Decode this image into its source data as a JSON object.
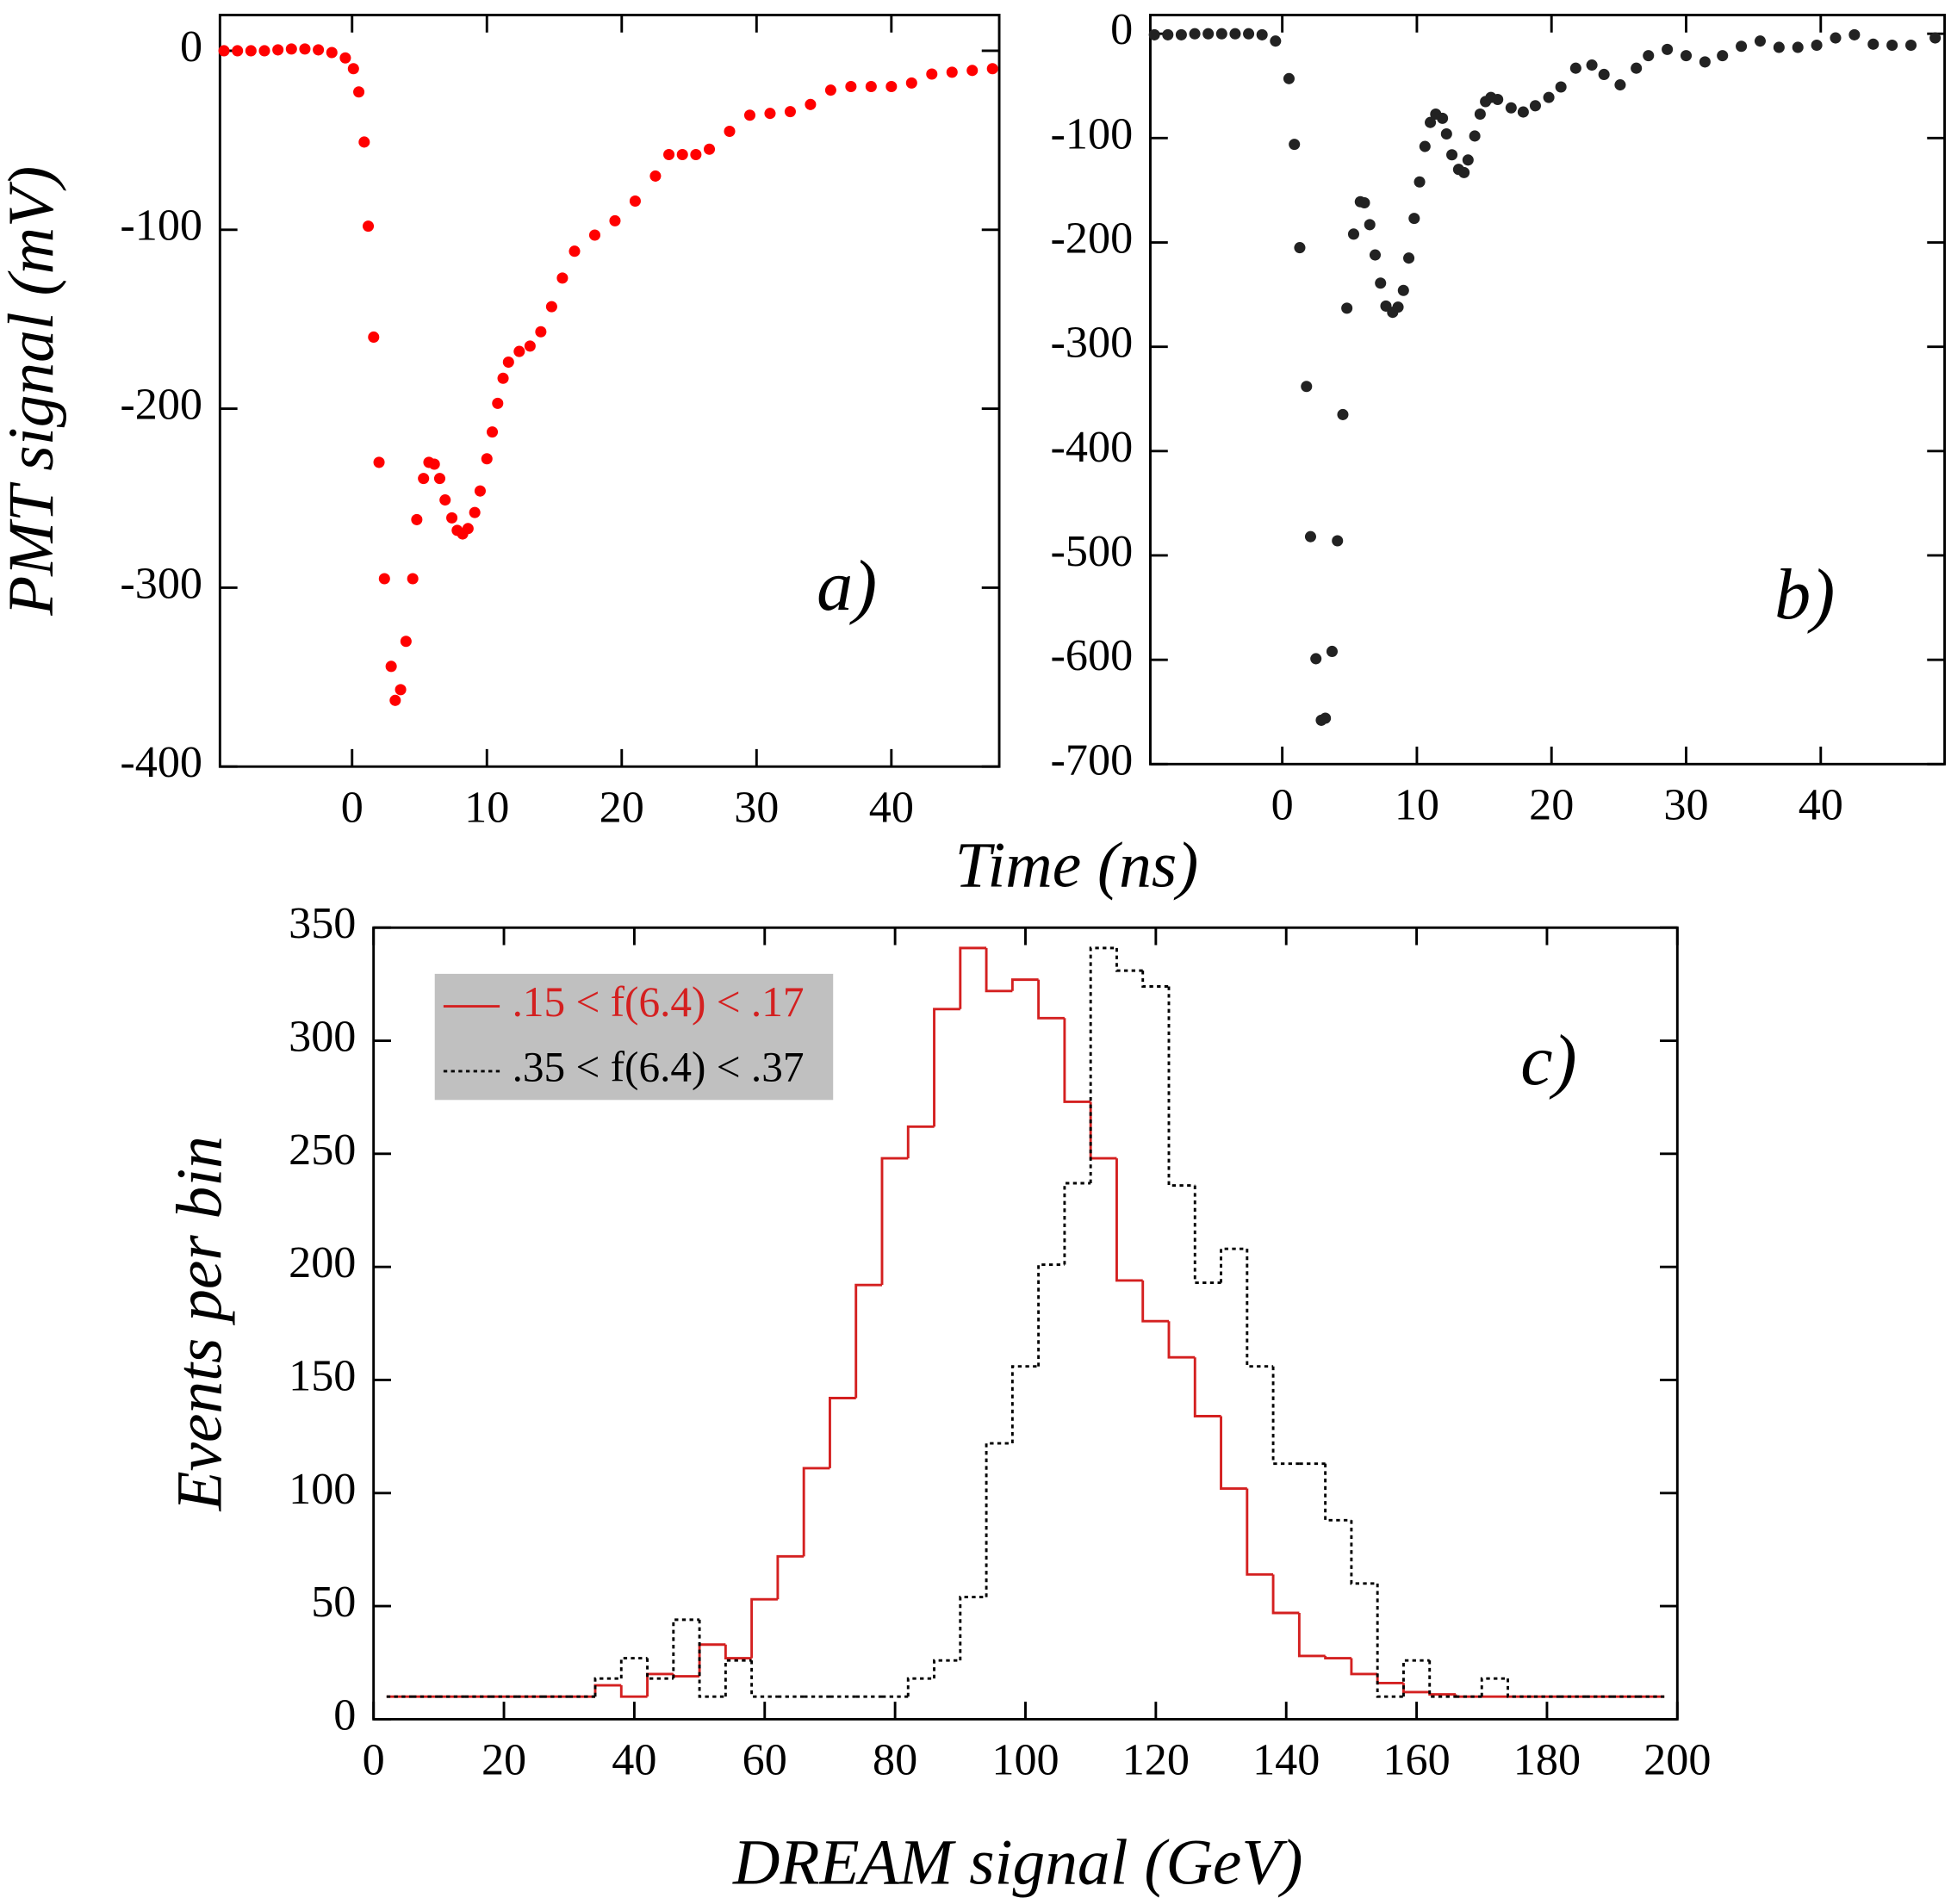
{
  "chart_data": [
    {
      "type": "scatter",
      "ylabel": "PMT signal (mV)",
      "xlabel": "Time (ns)",
      "annotation": "a)",
      "color": "#ff0000",
      "xlim": [
        -9.8,
        48
      ],
      "ylim": [
        -400,
        20
      ],
      "xticks": [
        0,
        10,
        20,
        30,
        40
      ],
      "yticks": [
        -400,
        -300,
        -200,
        -100,
        0
      ],
      "x": [
        -9.5,
        -8.5,
        -7.5,
        -6.5,
        -5.5,
        -4.5,
        -3.5,
        -2.5,
        -1.5,
        -0.5,
        0.1,
        0.5,
        0.9,
        1.2,
        1.6,
        2.0,
        2.4,
        2.9,
        3.2,
        3.6,
        4.0,
        4.5,
        4.8,
        5.3,
        5.7,
        6.1,
        6.5,
        6.9,
        7.4,
        7.8,
        8.2,
        8.6,
        9.1,
        9.5,
        10.0,
        10.4,
        10.8,
        11.2,
        11.6,
        12.4,
        13.2,
        14.0,
        14.8,
        15.6,
        16.5,
        18,
        19.5,
        21,
        22.5,
        23.5,
        24.5,
        25.5,
        26.5,
        28,
        29.5,
        31,
        32.5,
        34,
        35.5,
        37,
        38.5,
        40,
        41.5,
        43,
        44.5,
        46,
        47.5
      ],
      "values": [
        0,
        0,
        0,
        0,
        0.5,
        1,
        1,
        0.5,
        -1,
        -4,
        -10,
        -23,
        -51,
        -98,
        -160,
        -230,
        -295,
        -344,
        -363,
        -357,
        -330,
        -295,
        -262,
        -239,
        -230,
        -231,
        -239,
        -251,
        -261,
        -268,
        -270,
        -267,
        -258,
        -246,
        -228,
        -213,
        -197,
        -183,
        -174,
        -168,
        -165,
        -157,
        -143,
        -127,
        -112,
        -103,
        -95,
        -84,
        -70,
        -58,
        -58,
        -58,
        -55,
        -45,
        -36,
        -35,
        -34,
        -30,
        -22,
        -20,
        -20,
        -20,
        -18,
        -13,
        -12,
        -11,
        -10
      ]
    },
    {
      "type": "scatter",
      "annotation": "b)",
      "color": "#222222",
      "xlim": [
        -9.8,
        49.2
      ],
      "ylim": [
        -700,
        18
      ],
      "xticks": [
        0,
        10,
        20,
        30,
        40
      ],
      "yticks": [
        -700,
        -600,
        -500,
        -400,
        -300,
        -200,
        -100,
        0
      ],
      "x": [
        -9.5,
        -8.5,
        -7.5,
        -6.5,
        -5.5,
        -4.5,
        -3.5,
        -2.5,
        -1.5,
        -0.5,
        0.5,
        0.9,
        1.3,
        1.8,
        2.1,
        2.5,
        2.9,
        3.2,
        3.7,
        4.1,
        4.5,
        4.8,
        5.3,
        5.8,
        6.1,
        6.5,
        6.9,
        7.3,
        7.7,
        8.2,
        8.6,
        9.0,
        9.4,
        9.8,
        10.2,
        10.6,
        11.0,
        11.4,
        11.9,
        12.2,
        12.6,
        13.1,
        13.5,
        13.8,
        14.3,
        14.7,
        15.1,
        15.5,
        16,
        17,
        17.9,
        18.8,
        19.8,
        20.7,
        21.8,
        23,
        23.9,
        25.1,
        26.3,
        27.2,
        28.6,
        30,
        31.4,
        32.7,
        34.1,
        35.5,
        36.9,
        38.3,
        39.7,
        41.1,
        42.5,
        43.9,
        45.3,
        46.7,
        48.5
      ],
      "values": [
        -1,
        -1,
        -1,
        0,
        0,
        0,
        0,
        0,
        -1,
        -7,
        -43,
        -106,
        -205,
        -338,
        -482,
        -599,
        -658,
        -656,
        -592,
        -486,
        -365,
        -263,
        -192,
        -161,
        -162,
        -183,
        -212,
        -239,
        -261,
        -267,
        -262,
        -246,
        -215,
        -177,
        -142,
        -108,
        -85,
        -77,
        -81,
        -96,
        -116,
        -130,
        -133,
        -121,
        -98,
        -77,
        -65,
        -61,
        -63,
        -71,
        -75,
        -69,
        -61,
        -51,
        -33,
        -30,
        -39,
        -49,
        -33,
        -21,
        -15,
        -21,
        -27,
        -21,
        -12,
        -7,
        -13,
        -13,
        -11,
        -4,
        -1,
        -10,
        -11,
        -11,
        -4
      ]
    },
    {
      "type": "histogram",
      "xlabel": "DREAM signal (GeV)",
      "ylabel": "Events per bin",
      "annotation": "c)",
      "legend": "upper left",
      "xlim": [
        0,
        200
      ],
      "ylim": [
        0,
        350
      ],
      "xticks": [
        0,
        20,
        40,
        60,
        80,
        100,
        120,
        140,
        160,
        180,
        200
      ],
      "yticks": [
        0,
        50,
        100,
        150,
        200,
        250,
        300,
        350
      ],
      "bins": [
        2,
        6,
        10,
        14,
        18,
        22,
        26,
        30,
        34,
        38,
        42,
        46,
        50,
        54,
        58,
        62,
        66,
        70,
        74,
        78,
        82,
        86,
        90,
        94,
        98,
        102,
        106,
        110,
        114,
        118,
        122,
        126,
        130,
        134,
        138,
        142,
        146,
        150,
        154,
        158,
        162,
        166,
        170,
        174,
        178,
        182,
        186,
        190,
        194,
        198
      ],
      "series": [
        {
          "name": ".15 < f(6.4) < .17",
          "color": "#d42020",
          "linestyle": "solid",
          "values": [
            10,
            10,
            10,
            10,
            10,
            10,
            10,
            10,
            15,
            10,
            20,
            19,
            33,
            27,
            53,
            72,
            111,
            142,
            192,
            248,
            262,
            314,
            341,
            322,
            327,
            310,
            273,
            248,
            194,
            176,
            160,
            134,
            102,
            64,
            47,
            28,
            27,
            20,
            16,
            12,
            11,
            10,
            10,
            10,
            10,
            10,
            10,
            10,
            10
          ]
        },
        {
          "name": ".35 < f(6.4) < .37",
          "color": "#000000",
          "linestyle": "dotted",
          "values": [
            10,
            10,
            10,
            10,
            10,
            10,
            10,
            10,
            18,
            27,
            18,
            44,
            10,
            26,
            10,
            10,
            10,
            10,
            10,
            10,
            18,
            26,
            54,
            122,
            156,
            201,
            237,
            341,
            331,
            324,
            236,
            193,
            208,
            156,
            113,
            113,
            88,
            60,
            10,
            26,
            10,
            10,
            18,
            10,
            10,
            10,
            10,
            10,
            10
          ]
        }
      ]
    }
  ]
}
